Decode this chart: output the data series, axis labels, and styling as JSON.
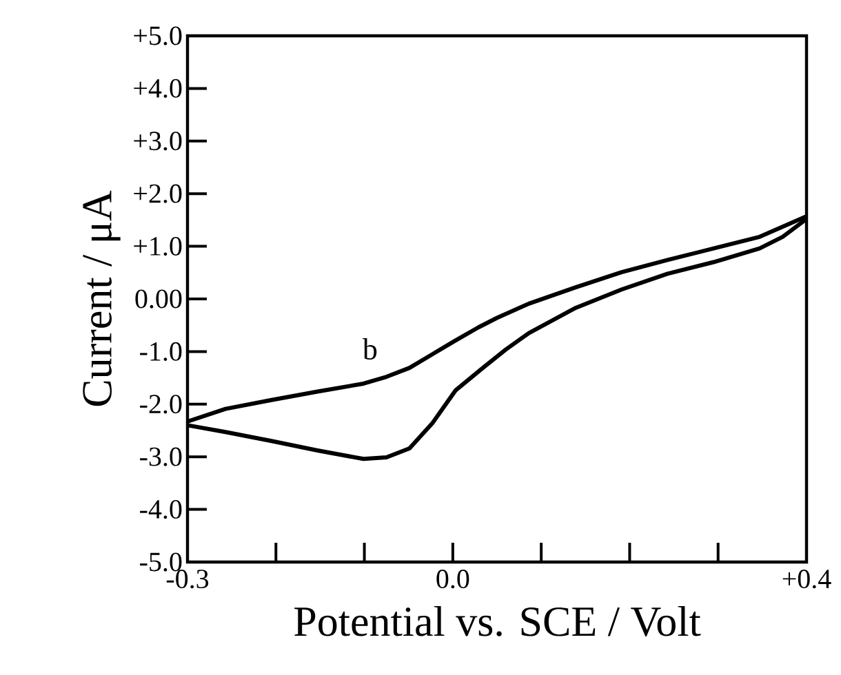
{
  "chart_data": {
    "type": "line",
    "xlabel": "Potential vs. SCE / Volt",
    "ylabel": "Current / μA",
    "xlim": [
      -0.3,
      0.4
    ],
    "ylim": [
      -5,
      5
    ],
    "xticks": [
      {
        "value": -0.3,
        "label": "-0.3"
      },
      {
        "value": -0.2,
        "label": null
      },
      {
        "value": -0.1,
        "label": null
      },
      {
        "value": 0.0,
        "label": "0.0"
      },
      {
        "value": 0.1,
        "label": null
      },
      {
        "value": 0.2,
        "label": null
      },
      {
        "value": 0.3,
        "label": null
      },
      {
        "value": 0.4,
        "label": "+0.4"
      }
    ],
    "yticks": [
      {
        "value": 5,
        "label": "+5.0"
      },
      {
        "value": 4,
        "label": "+4.0"
      },
      {
        "value": 3,
        "label": "+3.0"
      },
      {
        "value": 2,
        "label": "+2.0"
      },
      {
        "value": 1,
        "label": "+1.0"
      },
      {
        "value": 0,
        "label": "0.00"
      },
      {
        "value": -1,
        "label": "-1.0"
      },
      {
        "value": -2,
        "label": "-2.0"
      },
      {
        "value": -3,
        "label": "-3.0"
      },
      {
        "value": -4,
        "label": "-4.0"
      },
      {
        "value": -5,
        "label": "-5.0"
      }
    ],
    "line_style": "solid",
    "annotations": [
      "b"
    ],
    "series": [
      {
        "color": "#000000",
        "x": [
          -0.3,
          -0.257,
          -0.205,
          -0.153,
          -0.101,
          -0.075,
          -0.049,
          -0.023,
          0.003,
          0.029,
          0.05,
          0.086,
          0.139,
          0.191,
          0.243,
          0.295,
          0.347,
          0.4
        ],
        "values": [
          -2.33,
          -2.09,
          -1.92,
          -1.76,
          -1.61,
          -1.48,
          -1.31,
          -1.05,
          -0.79,
          -0.54,
          -0.36,
          -0.09,
          0.22,
          0.51,
          0.74,
          0.96,
          1.18,
          1.57
        ]
      },
      {
        "color": "#000000",
        "x": [
          -0.3,
          -0.257,
          -0.205,
          -0.153,
          -0.101,
          -0.075,
          -0.049,
          -0.023,
          0.003,
          0.034,
          0.06,
          0.086,
          0.139,
          0.191,
          0.243,
          0.295,
          0.347,
          0.373,
          0.4
        ],
        "values": [
          -2.4,
          -2.53,
          -2.7,
          -2.88,
          -3.04,
          -3.01,
          -2.84,
          -2.36,
          -1.74,
          -1.31,
          -0.96,
          -0.65,
          -0.17,
          0.18,
          0.48,
          0.7,
          0.96,
          1.18,
          1.52
        ]
      }
    ]
  }
}
